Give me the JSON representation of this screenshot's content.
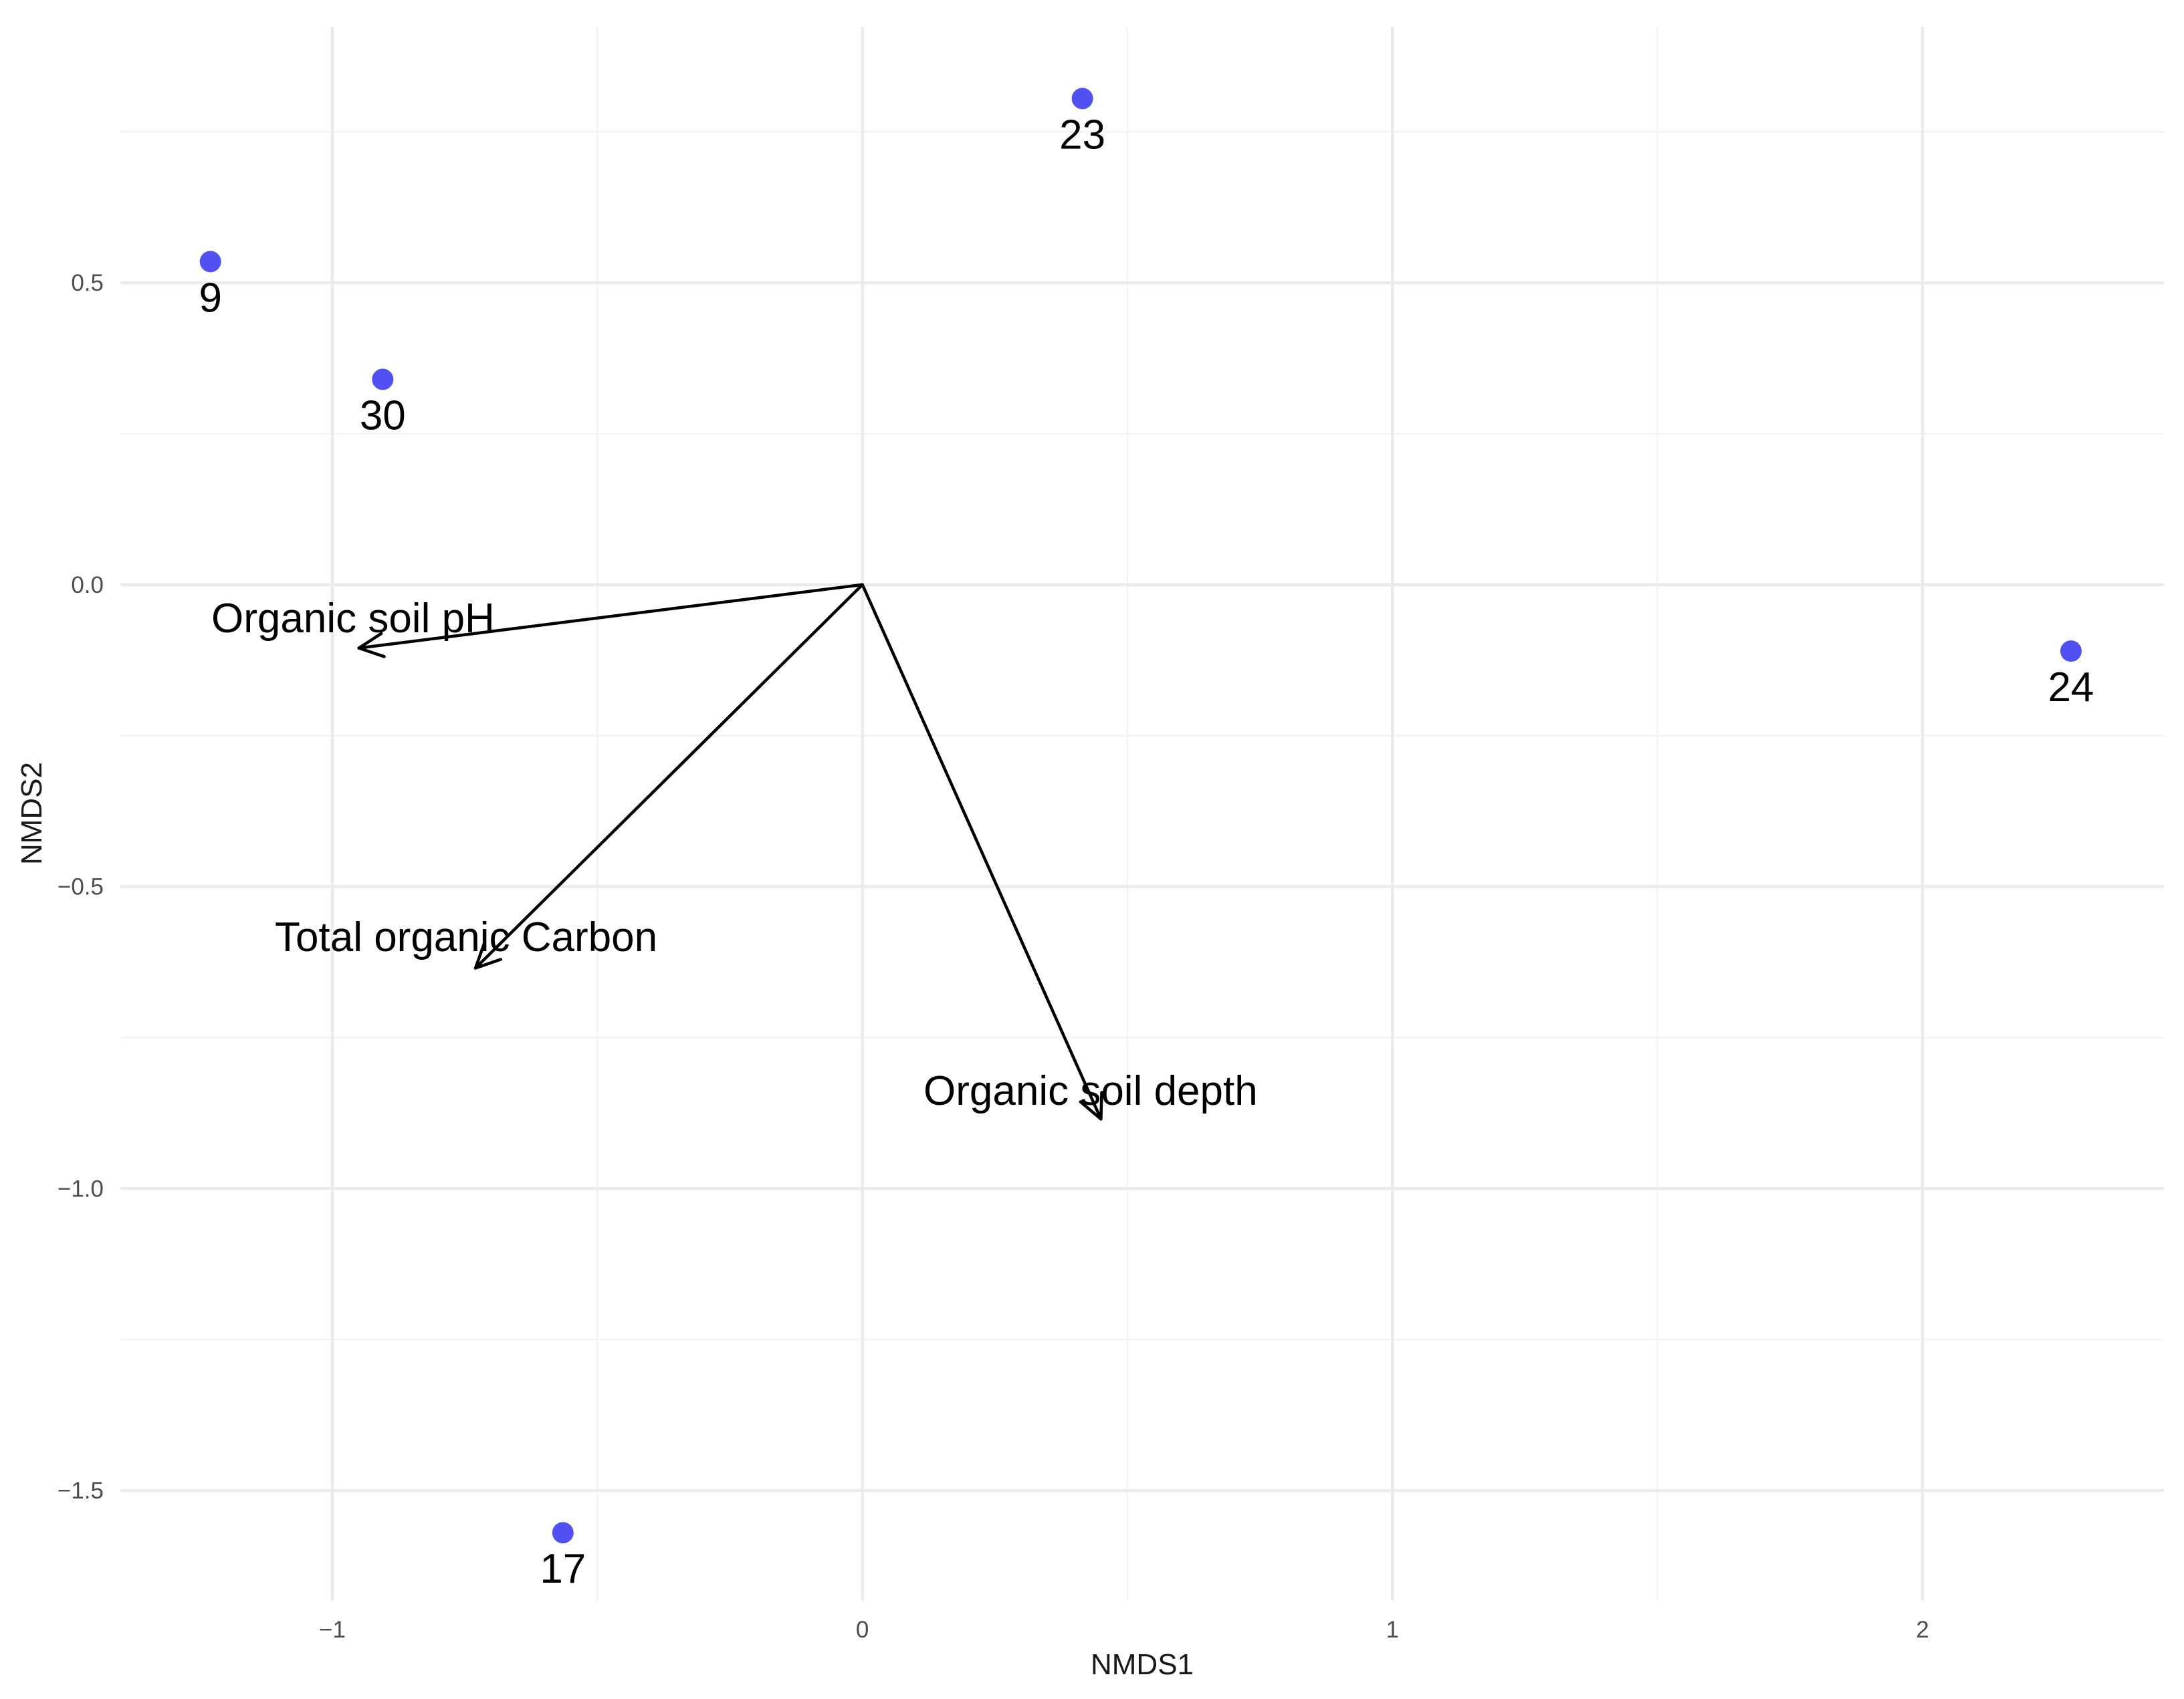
{
  "chart_data": {
    "type": "scatter",
    "title": "",
    "xlabel": "NMDS1",
    "ylabel": "NMDS2",
    "xlim": [
      -1.4,
      2.45
    ],
    "ylim": [
      -1.68,
      0.87
    ],
    "grid": true,
    "legend": "none",
    "x_ticks": [
      -1,
      0,
      1,
      2
    ],
    "x_tick_labels": [
      "−1",
      "0",
      "1",
      "2"
    ],
    "y_ticks": [
      -1.5,
      -1.0,
      -0.5,
      0.0,
      0.5
    ],
    "y_tick_labels": [
      "−1.5",
      "−1.0",
      "−0.5",
      "0.0",
      "0.5"
    ],
    "point_color": "#4848f0",
    "points": [
      {
        "label": "9",
        "x": -1.23,
        "y": 0.535
      },
      {
        "label": "30",
        "x": -0.905,
        "y": 0.34
      },
      {
        "label": "23",
        "x": 0.415,
        "y": 0.805
      },
      {
        "label": "24",
        "x": 2.28,
        "y": -0.11
      },
      {
        "label": "17",
        "x": -0.565,
        "y": -1.57
      }
    ],
    "vectors": [
      {
        "label": "Organic soil pH",
        "x": -0.95,
        "y": -0.105
      },
      {
        "label": "Total organic Carbon",
        "x": -0.73,
        "y": -0.635
      },
      {
        "label": "Organic soil depth",
        "x": 0.45,
        "y": -0.885
      }
    ]
  }
}
